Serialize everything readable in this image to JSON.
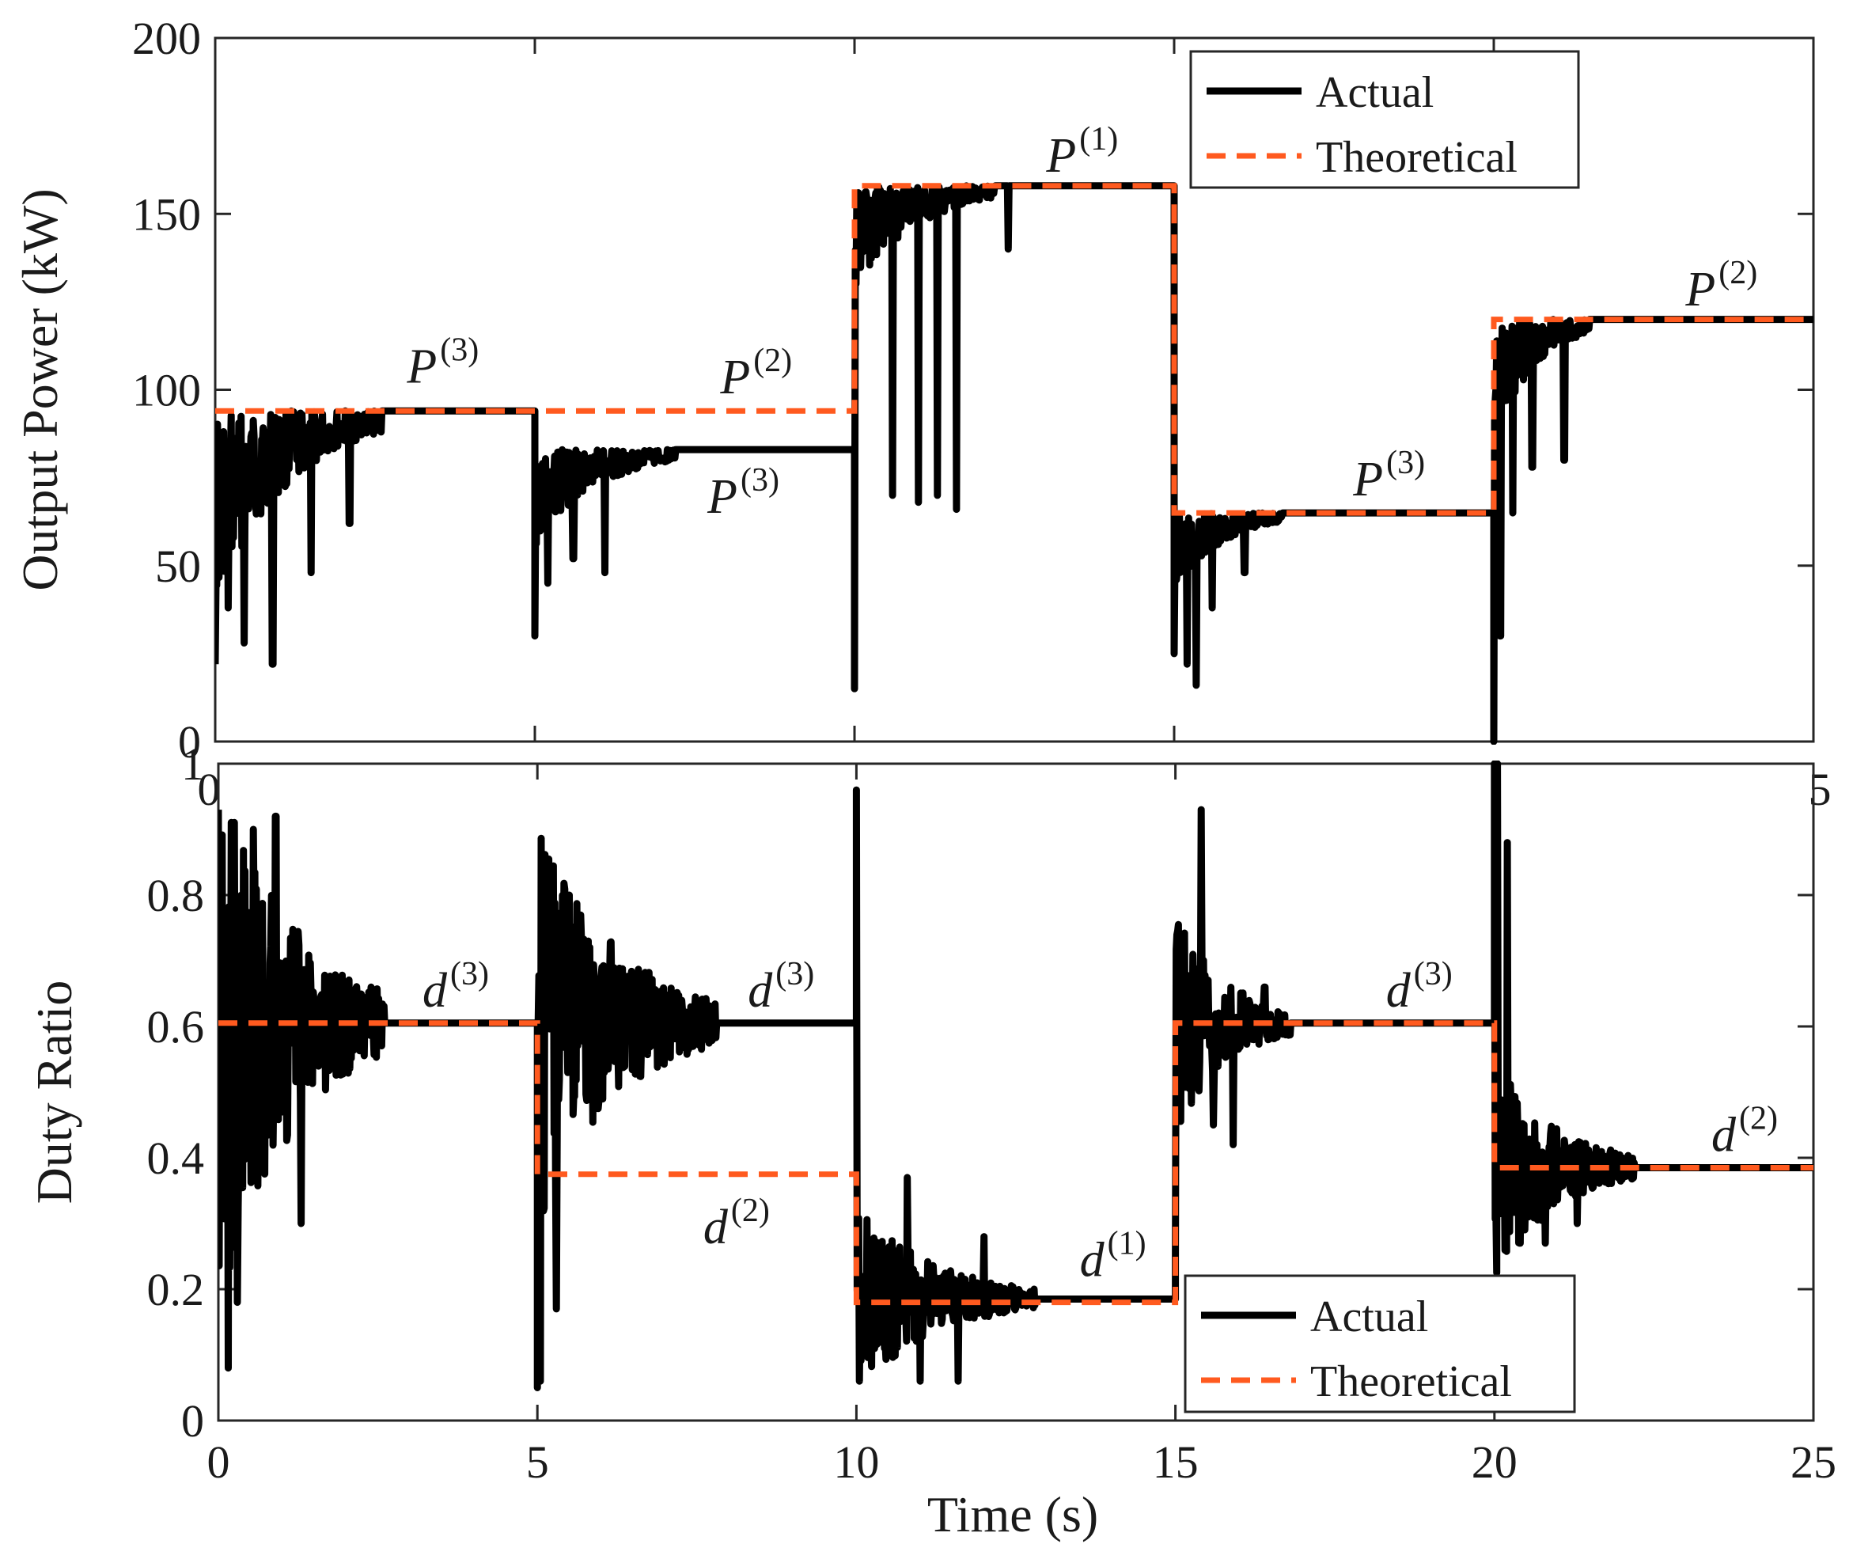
{
  "chart_data": [
    {
      "type": "line",
      "id": "power",
      "ylabel": "Output Power (kW)",
      "xlabel": "",
      "xlim": [
        0,
        25
      ],
      "ylim": [
        0,
        200
      ],
      "yticks": [
        0,
        50,
        100,
        150,
        200
      ],
      "xtick_labels_visible": [
        "0",
        "5"
      ],
      "legend": {
        "position": "top-right",
        "entries": [
          "Actual",
          "Theoretical"
        ]
      },
      "series": [
        {
          "name": "Theoretical",
          "color": "#ff5a1f",
          "style": "dashed",
          "points": [
            [
              0,
              94
            ],
            [
              10,
              94
            ],
            [
              10,
              158
            ],
            [
              15,
              158
            ],
            [
              15,
              65
            ],
            [
              20,
              65
            ],
            [
              20,
              120
            ],
            [
              25,
              120
            ]
          ]
        },
        {
          "name": "Actual",
          "color": "#000000",
          "style": "solid",
          "segments": [
            {
              "t0": 0,
              "t1": 5,
              "start": 22,
              "settle": 94,
              "amp": 55,
              "settle_t": 2.6,
              "dips": [
                [
                  0.2,
                  38
                ],
                [
                  0.45,
                  28
                ],
                [
                  0.9,
                  22
                ],
                [
                  1.5,
                  48
                ],
                [
                  2.1,
                  62
                ]
              ]
            },
            {
              "t0": 5,
              "t1": 10,
              "start": 30,
              "settle": 83,
              "amp": 28,
              "settle_t": 2.2,
              "dips": [
                [
                  5.2,
                  45
                ],
                [
                  5.6,
                  52
                ],
                [
                  6.1,
                  48
                ]
              ]
            },
            {
              "t0": 10,
              "t1": 15,
              "start": 15,
              "settle": 158,
              "amp": 30,
              "settle_t": 2.2,
              "dips": [
                [
                  10.6,
                  70
                ],
                [
                  11.0,
                  68
                ],
                [
                  11.3,
                  70
                ],
                [
                  11.6,
                  66
                ],
                [
                  12.4,
                  140
                ]
              ]
            },
            {
              "t0": 15,
              "t1": 20,
              "start": 25,
              "settle": 65,
              "amp": 22,
              "settle_t": 1.7,
              "dips": [
                [
                  15.2,
                  22
                ],
                [
                  15.35,
                  16
                ],
                [
                  15.6,
                  38
                ],
                [
                  16.1,
                  48
                ]
              ]
            },
            {
              "t0": 20,
              "t1": 25,
              "start": 0,
              "settle": 120,
              "amp": 35,
              "settle_t": 1.5,
              "dips": [
                [
                  20.1,
                  30
                ],
                [
                  20.3,
                  65
                ],
                [
                  20.6,
                  78
                ],
                [
                  21.1,
                  80
                ]
              ]
            }
          ]
        }
      ],
      "annotations": [
        {
          "base": "P",
          "sup": "(3)",
          "x": 3.0,
          "y": 102
        },
        {
          "base": "P",
          "sup": "(2)",
          "x": 7.9,
          "y": 99
        },
        {
          "base": "P",
          "sup": "(3)",
          "x": 7.7,
          "y": 65
        },
        {
          "base": "P",
          "sup": "(1)",
          "x": 13.0,
          "y": 162
        },
        {
          "base": "P",
          "sup": "(3)",
          "x": 17.8,
          "y": 70
        },
        {
          "base": "P",
          "sup": "(2)",
          "x": 23.0,
          "y": 124
        }
      ]
    },
    {
      "type": "line",
      "id": "duty",
      "ylabel": "Duty Ratio",
      "xlabel": "Time (s)",
      "xlim": [
        0,
        25
      ],
      "ylim": [
        0,
        1
      ],
      "yticks": [
        0,
        0.2,
        0.4,
        0.6,
        0.8,
        1
      ],
      "ytick_labels": [
        "0",
        "0.2",
        "0.4",
        "0.6",
        "0.8",
        "1"
      ],
      "xticks": [
        0,
        5,
        10,
        15,
        20,
        25
      ],
      "legend": {
        "position": "bottom-right",
        "entries": [
          "Actual",
          "Theoretical"
        ]
      },
      "series": [
        {
          "name": "Theoretical",
          "color": "#ff5a1f",
          "style": "dashed",
          "points": [
            [
              0,
              0.605
            ],
            [
              5,
              0.605
            ],
            [
              5,
              0.375
            ],
            [
              10,
              0.375
            ],
            [
              10,
              0.18
            ],
            [
              15,
              0.18
            ],
            [
              15,
              0.605
            ],
            [
              20,
              0.605
            ],
            [
              20,
              0.385
            ],
            [
              25,
              0.385
            ]
          ]
        },
        {
          "name": "Actual",
          "color": "#000000",
          "style": "solid",
          "segments": [
            {
              "t0": 0,
              "t1": 5,
              "start": 0.93,
              "settle": 0.605,
              "amp": 0.32,
              "settle_t": 2.6,
              "spikes": [
                [
                  0.15,
                  0.08
                ],
                [
                  0.3,
                  0.18
                ],
                [
                  0.55,
                  0.9
                ],
                [
                  0.9,
                  0.92
                ],
                [
                  1.3,
                  0.3
                ]
              ]
            },
            {
              "t0": 5,
              "t1": 10,
              "start": 0.05,
              "settle": 0.605,
              "amp": 0.22,
              "settle_t": 2.8,
              "spikes": [
                [
                  5.05,
                  0.06
                ],
                [
                  5.15,
                  0.78
                ],
                [
                  5.5,
                  0.8
                ],
                [
                  5.3,
                  0.17
                ]
              ]
            },
            {
              "t0": 10,
              "t1": 15,
              "start": 0.96,
              "settle": 0.185,
              "amp": 0.1,
              "settle_t": 2.8,
              "spikes": [
                [
                  10.05,
                  0.06
                ],
                [
                  10.8,
                  0.37
                ],
                [
                  11.0,
                  0.06
                ],
                [
                  11.6,
                  0.06
                ],
                [
                  12.0,
                  0.28
                ]
              ]
            },
            {
              "t0": 15,
              "t1": 20,
              "start": 0.25,
              "settle": 0.605,
              "amp": 0.12,
              "settle_t": 1.8,
              "spikes": [
                [
                  15.4,
                  0.93
                ],
                [
                  15.6,
                  0.45
                ],
                [
                  15.9,
                  0.42
                ],
                [
                  16.4,
                  0.66
                ]
              ]
            },
            {
              "t0": 20,
              "t1": 25,
              "start": 1.0,
              "settle": 0.385,
              "amp": 0.12,
              "settle_t": 2.2,
              "spikes": [
                [
                  20.05,
                  1.0
                ],
                [
                  20.2,
                  0.88
                ],
                [
                  20.4,
                  0.27
                ],
                [
                  20.8,
                  0.27
                ],
                [
                  21.3,
                  0.3
                ]
              ]
            }
          ]
        }
      ],
      "annotations": [
        {
          "base": "d",
          "sup": "(3)",
          "x": 3.2,
          "y": 0.63
        },
        {
          "base": "d",
          "sup": "(3)",
          "x": 8.3,
          "y": 0.63
        },
        {
          "base": "d",
          "sup": "(2)",
          "x": 7.6,
          "y": 0.27
        },
        {
          "base": "d",
          "sup": "(1)",
          "x": 13.5,
          "y": 0.22
        },
        {
          "base": "d",
          "sup": "(3)",
          "x": 18.3,
          "y": 0.63
        },
        {
          "base": "d",
          "sup": "(2)",
          "x": 23.4,
          "y": 0.41
        }
      ]
    }
  ]
}
